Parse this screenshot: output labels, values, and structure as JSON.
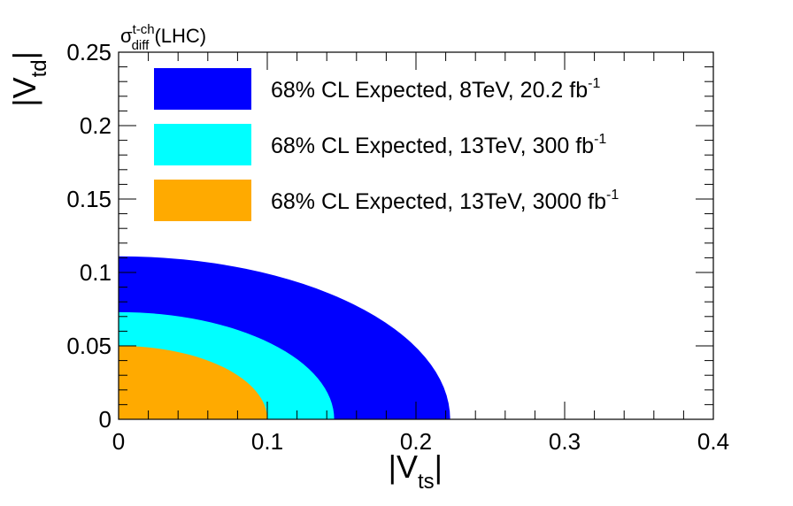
{
  "chart_data": {
    "type": "area",
    "title_symbol": "σ",
    "title_sup": "t-ch",
    "title_sub": "diff",
    "title_rest": " (LHC)",
    "xlabel": {
      "open": "|V",
      "sub": "ts",
      "close": "|"
    },
    "ylabel": {
      "open": "|V",
      "sub": "td",
      "close": "|"
    },
    "xlim": [
      0,
      0.4
    ],
    "ylim": [
      0,
      0.25
    ],
    "x_ticks": [
      0,
      0.1,
      0.2,
      0.3,
      0.4
    ],
    "x_tick_labels": [
      "0",
      "0.1",
      "0.2",
      "0.3",
      "0.4"
    ],
    "y_ticks": [
      0,
      0.05,
      0.1,
      0.15,
      0.2,
      0.25
    ],
    "y_tick_labels": [
      "0",
      "0.05",
      "0.1",
      "0.15",
      "0.2",
      "0.25"
    ],
    "legend_position": "top",
    "series": [
      {
        "name": "68% CL Expected, 8TeV, 20.2 fb",
        "sup": "-1",
        "color": "#0000ff",
        "rx": 0.223,
        "ry": 0.111
      },
      {
        "name": "68% CL Expected, 13TeV, 300 fb",
        "sup": "-1",
        "color": "#00ffff",
        "rx": 0.145,
        "ry": 0.073
      },
      {
        "name": "68% CL Expected, 13TeV, 3000 fb",
        "sup": "-1",
        "color": "#ffaa00",
        "rx": 0.1,
        "ry": 0.05
      }
    ]
  }
}
